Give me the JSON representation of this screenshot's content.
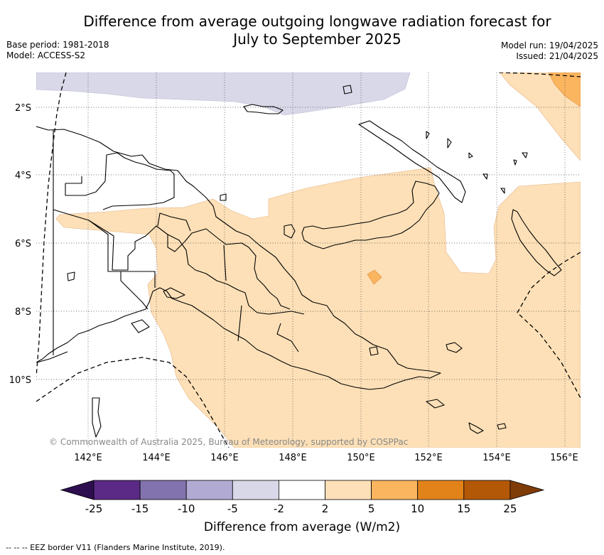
{
  "title_line1": "Difference from average outgoing longwave radiation forecast for",
  "title_line2": "July to September 2025",
  "base_period": "Base period: 1981-2018",
  "model": "Model: ACCESS-S2",
  "model_run": "Model run: 19/04/2025",
  "issued": "Issued: 21/04/2025",
  "credit": "© Commonwealth of Australia 2025, Bureau of Meteorology, supported by COSPPac",
  "lat_ticks": [
    "2°S",
    "4°S",
    "6°S",
    "8°S",
    "10°S"
  ],
  "lon_ticks": [
    "142°E",
    "144°E",
    "146°E",
    "148°E",
    "150°E",
    "152°E",
    "154°E",
    "156°E"
  ],
  "colorbar": {
    "label": "Difference from average (W/m2)",
    "ticks": [
      "-25",
      "-15",
      "-10",
      "-5",
      "-2",
      "2",
      "5",
      "10",
      "15",
      "25"
    ],
    "colors": [
      "#2d0e4f",
      "#5b2a86",
      "#8272ad",
      "#b1aad2",
      "#d8d8e9",
      "#ffffff",
      "#fde0b7",
      "#fbb55f",
      "#e2831a",
      "#b35806",
      "#7f3b08"
    ]
  },
  "footer": "--  --  -- EEZ border V11 (Flanders Marine Institute, 2019)."
}
